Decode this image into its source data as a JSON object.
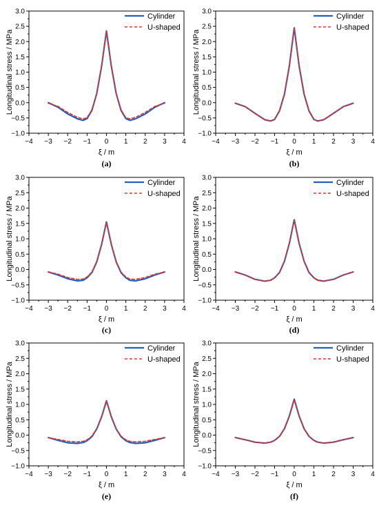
{
  "common": {
    "xlabel": "ξ / m",
    "ylabel": "Longitudinal stress / MPa",
    "xlim": [
      -4,
      4
    ],
    "ylim": [
      -1.0,
      3.0
    ],
    "xticks": [
      "−4",
      "−3",
      "−2",
      "−1",
      "0",
      "1",
      "2",
      "3",
      "4"
    ],
    "yticks": [
      "−1.0",
      "−0.5",
      "0.0",
      "0.5",
      "1.0",
      "1.5",
      "2.0",
      "2.5",
      "3.0"
    ],
    "legend": {
      "position": "top-right",
      "entries": [
        "Cylinder",
        "U-shaped"
      ]
    },
    "colors": {
      "Cylinder": "#1f5fbf",
      "U-shaped": "#e8302a"
    }
  },
  "chart_data": [
    {
      "type": "line",
      "caption": "(a)",
      "xlim": [
        -4,
        4
      ],
      "ylim": [
        -1.0,
        3.0
      ],
      "grid": false,
      "x": [
        -3,
        -2.5,
        -2,
        -1.5,
        -1.2,
        -1,
        -0.75,
        -0.5,
        -0.25,
        0,
        0.25,
        0.5,
        0.75,
        1,
        1.2,
        1.5,
        2,
        2.5,
        3
      ],
      "series": [
        {
          "name": "Cylinder",
          "style": "solid",
          "values": [
            0.0,
            -0.15,
            -0.37,
            -0.53,
            -0.58,
            -0.52,
            -0.25,
            0.3,
            1.2,
            2.35,
            1.2,
            0.3,
            -0.25,
            -0.52,
            -0.58,
            -0.53,
            -0.37,
            -0.15,
            0.0
          ]
        },
        {
          "name": "U-shaped",
          "style": "dashed",
          "values": [
            -0.02,
            -0.12,
            -0.32,
            -0.48,
            -0.53,
            -0.49,
            -0.23,
            0.3,
            1.2,
            2.33,
            1.2,
            0.3,
            -0.23,
            -0.49,
            -0.53,
            -0.48,
            -0.32,
            -0.12,
            -0.02
          ]
        }
      ]
    },
    {
      "type": "line",
      "caption": "(b)",
      "xlim": [
        -4,
        4
      ],
      "ylim": [
        -1.0,
        3.0
      ],
      "grid": false,
      "x": [
        -3,
        -2.5,
        -2,
        -1.5,
        -1.2,
        -1,
        -0.75,
        -0.5,
        -0.25,
        0,
        0.25,
        0.5,
        0.75,
        1,
        1.2,
        1.5,
        2,
        2.5,
        3
      ],
      "series": [
        {
          "name": "Cylinder",
          "style": "solid",
          "values": [
            -0.02,
            -0.13,
            -0.35,
            -0.56,
            -0.6,
            -0.55,
            -0.27,
            0.28,
            1.2,
            2.45,
            1.2,
            0.28,
            -0.27,
            -0.55,
            -0.6,
            -0.56,
            -0.35,
            -0.13,
            -0.02
          ]
        },
        {
          "name": "U-shaped",
          "style": "dashed",
          "values": [
            -0.02,
            -0.13,
            -0.35,
            -0.56,
            -0.6,
            -0.55,
            -0.27,
            0.28,
            1.2,
            2.43,
            1.2,
            0.28,
            -0.27,
            -0.55,
            -0.6,
            -0.56,
            -0.35,
            -0.13,
            -0.02
          ]
        }
      ]
    },
    {
      "type": "line",
      "caption": "(c)",
      "xlim": [
        -4,
        4
      ],
      "ylim": [
        -1.0,
        3.0
      ],
      "grid": false,
      "x": [
        -3,
        -2.5,
        -2,
        -1.5,
        -1.2,
        -1,
        -0.75,
        -0.5,
        -0.25,
        0,
        0.25,
        0.5,
        0.75,
        1,
        1.2,
        1.5,
        2,
        2.5,
        3
      ],
      "series": [
        {
          "name": "Cylinder",
          "style": "solid",
          "values": [
            -0.08,
            -0.18,
            -0.3,
            -0.37,
            -0.35,
            -0.27,
            -0.1,
            0.25,
            0.82,
            1.55,
            0.82,
            0.25,
            -0.1,
            -0.27,
            -0.35,
            -0.37,
            -0.3,
            -0.18,
            -0.08
          ]
        },
        {
          "name": "U-shaped",
          "style": "dashed",
          "values": [
            -0.08,
            -0.15,
            -0.26,
            -0.32,
            -0.31,
            -0.24,
            -0.08,
            0.26,
            0.83,
            1.53,
            0.83,
            0.26,
            -0.08,
            -0.24,
            -0.31,
            -0.32,
            -0.26,
            -0.15,
            -0.08
          ]
        }
      ]
    },
    {
      "type": "line",
      "caption": "(d)",
      "xlim": [
        -4,
        4
      ],
      "ylim": [
        -1.0,
        3.0
      ],
      "grid": false,
      "x": [
        -3,
        -2.5,
        -2,
        -1.5,
        -1.2,
        -1,
        -0.75,
        -0.5,
        -0.25,
        0,
        0.25,
        0.5,
        0.75,
        1,
        1.2,
        1.5,
        2,
        2.5,
        3
      ],
      "series": [
        {
          "name": "Cylinder",
          "style": "solid",
          "values": [
            -0.08,
            -0.18,
            -0.32,
            -0.38,
            -0.35,
            -0.27,
            -0.1,
            0.27,
            0.85,
            1.62,
            0.85,
            0.27,
            -0.1,
            -0.27,
            -0.35,
            -0.38,
            -0.32,
            -0.18,
            -0.08
          ]
        },
        {
          "name": "U-shaped",
          "style": "dashed",
          "values": [
            -0.08,
            -0.18,
            -0.32,
            -0.38,
            -0.35,
            -0.27,
            -0.1,
            0.27,
            0.85,
            1.6,
            0.85,
            0.27,
            -0.1,
            -0.27,
            -0.35,
            -0.38,
            -0.32,
            -0.18,
            -0.08
          ]
        }
      ]
    },
    {
      "type": "line",
      "caption": "(e)",
      "xlim": [
        -4,
        4
      ],
      "ylim": [
        -1.0,
        3.0
      ],
      "grid": false,
      "x": [
        -3,
        -2.5,
        -2,
        -1.5,
        -1.2,
        -1,
        -0.75,
        -0.5,
        -0.25,
        0,
        0.25,
        0.5,
        0.75,
        1,
        1.2,
        1.5,
        2,
        2.5,
        3
      ],
      "series": [
        {
          "name": "Cylinder",
          "style": "solid",
          "values": [
            -0.08,
            -0.17,
            -0.25,
            -0.27,
            -0.24,
            -0.18,
            -0.05,
            0.2,
            0.6,
            1.12,
            0.6,
            0.2,
            -0.05,
            -0.18,
            -0.24,
            -0.27,
            -0.25,
            -0.17,
            -0.08
          ]
        },
        {
          "name": "U-shaped",
          "style": "dashed",
          "values": [
            -0.08,
            -0.14,
            -0.2,
            -0.22,
            -0.2,
            -0.15,
            -0.03,
            0.21,
            0.61,
            1.1,
            0.61,
            0.21,
            -0.03,
            -0.15,
            -0.2,
            -0.22,
            -0.2,
            -0.14,
            -0.08
          ]
        }
      ]
    },
    {
      "type": "line",
      "caption": "(f)",
      "xlim": [
        -4,
        4
      ],
      "ylim": [
        -1.0,
        3.0
      ],
      "grid": false,
      "x": [
        -3,
        -2.5,
        -2,
        -1.5,
        -1.2,
        -1,
        -0.75,
        -0.5,
        -0.25,
        0,
        0.25,
        0.5,
        0.75,
        1,
        1.2,
        1.5,
        2,
        2.5,
        3
      ],
      "series": [
        {
          "name": "Cylinder",
          "style": "solid",
          "values": [
            -0.08,
            -0.15,
            -0.23,
            -0.26,
            -0.23,
            -0.17,
            -0.04,
            0.21,
            0.62,
            1.17,
            0.62,
            0.21,
            -0.04,
            -0.17,
            -0.23,
            -0.26,
            -0.23,
            -0.15,
            -0.08
          ]
        },
        {
          "name": "U-shaped",
          "style": "dashed",
          "values": [
            -0.08,
            -0.15,
            -0.23,
            -0.26,
            -0.23,
            -0.17,
            -0.04,
            0.21,
            0.62,
            1.15,
            0.62,
            0.21,
            -0.04,
            -0.17,
            -0.23,
            -0.26,
            -0.23,
            -0.15,
            -0.08
          ]
        }
      ]
    }
  ]
}
